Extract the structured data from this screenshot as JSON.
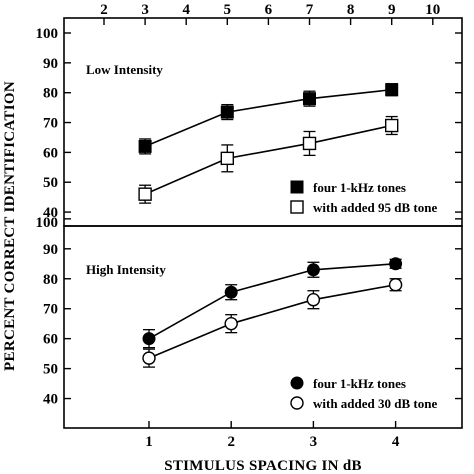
{
  "chart_data": [
    {
      "type": "line",
      "panel": "top",
      "label": "Low Intensity",
      "x": [
        3,
        5,
        7,
        9
      ],
      "x_axis_top": {
        "ticks": [
          2,
          3,
          4,
          5,
          6,
          7,
          8,
          9,
          10
        ]
      },
      "ylim": [
        35,
        100
      ],
      "yticks": [
        40,
        50,
        60,
        70,
        80,
        90,
        100
      ],
      "series": [
        {
          "name": "four 1-kHz tones",
          "marker": "filled-square",
          "values": [
            62,
            73.5,
            78,
            81
          ],
          "err": [
            2.5,
            2.5,
            2.5,
            2
          ]
        },
        {
          "name": "with added 95 dB tone",
          "marker": "open-square",
          "values": [
            46,
            58,
            63,
            69
          ],
          "err": [
            3,
            4.5,
            4,
            3
          ]
        }
      ],
      "legend_position": "bottom-right"
    },
    {
      "type": "line",
      "panel": "bottom",
      "label": "High Intensity",
      "x": [
        1,
        2,
        3,
        4
      ],
      "x_axis_bottom": {
        "ticks": [
          1,
          2,
          3,
          4
        ]
      },
      "ylim": [
        30,
        100
      ],
      "yticks": [
        40,
        50,
        60,
        70,
        80,
        90,
        100
      ],
      "series": [
        {
          "name": "four 1-kHz tones",
          "marker": "filled-circle",
          "values": [
            60,
            75.5,
            83,
            85
          ],
          "err": [
            3,
            2.5,
            2.5,
            1.5
          ]
        },
        {
          "name": "with added 30 dB tone",
          "marker": "open-circle",
          "values": [
            53.5,
            65,
            73,
            78
          ],
          "err": [
            3,
            3,
            3,
            2
          ]
        }
      ],
      "legend_position": "bottom-right"
    }
  ],
  "axes": {
    "ylabel": "PERCENT CORRECT IDENTIFICATION",
    "xlabel": "STIMULUS SPACING IN dB"
  }
}
